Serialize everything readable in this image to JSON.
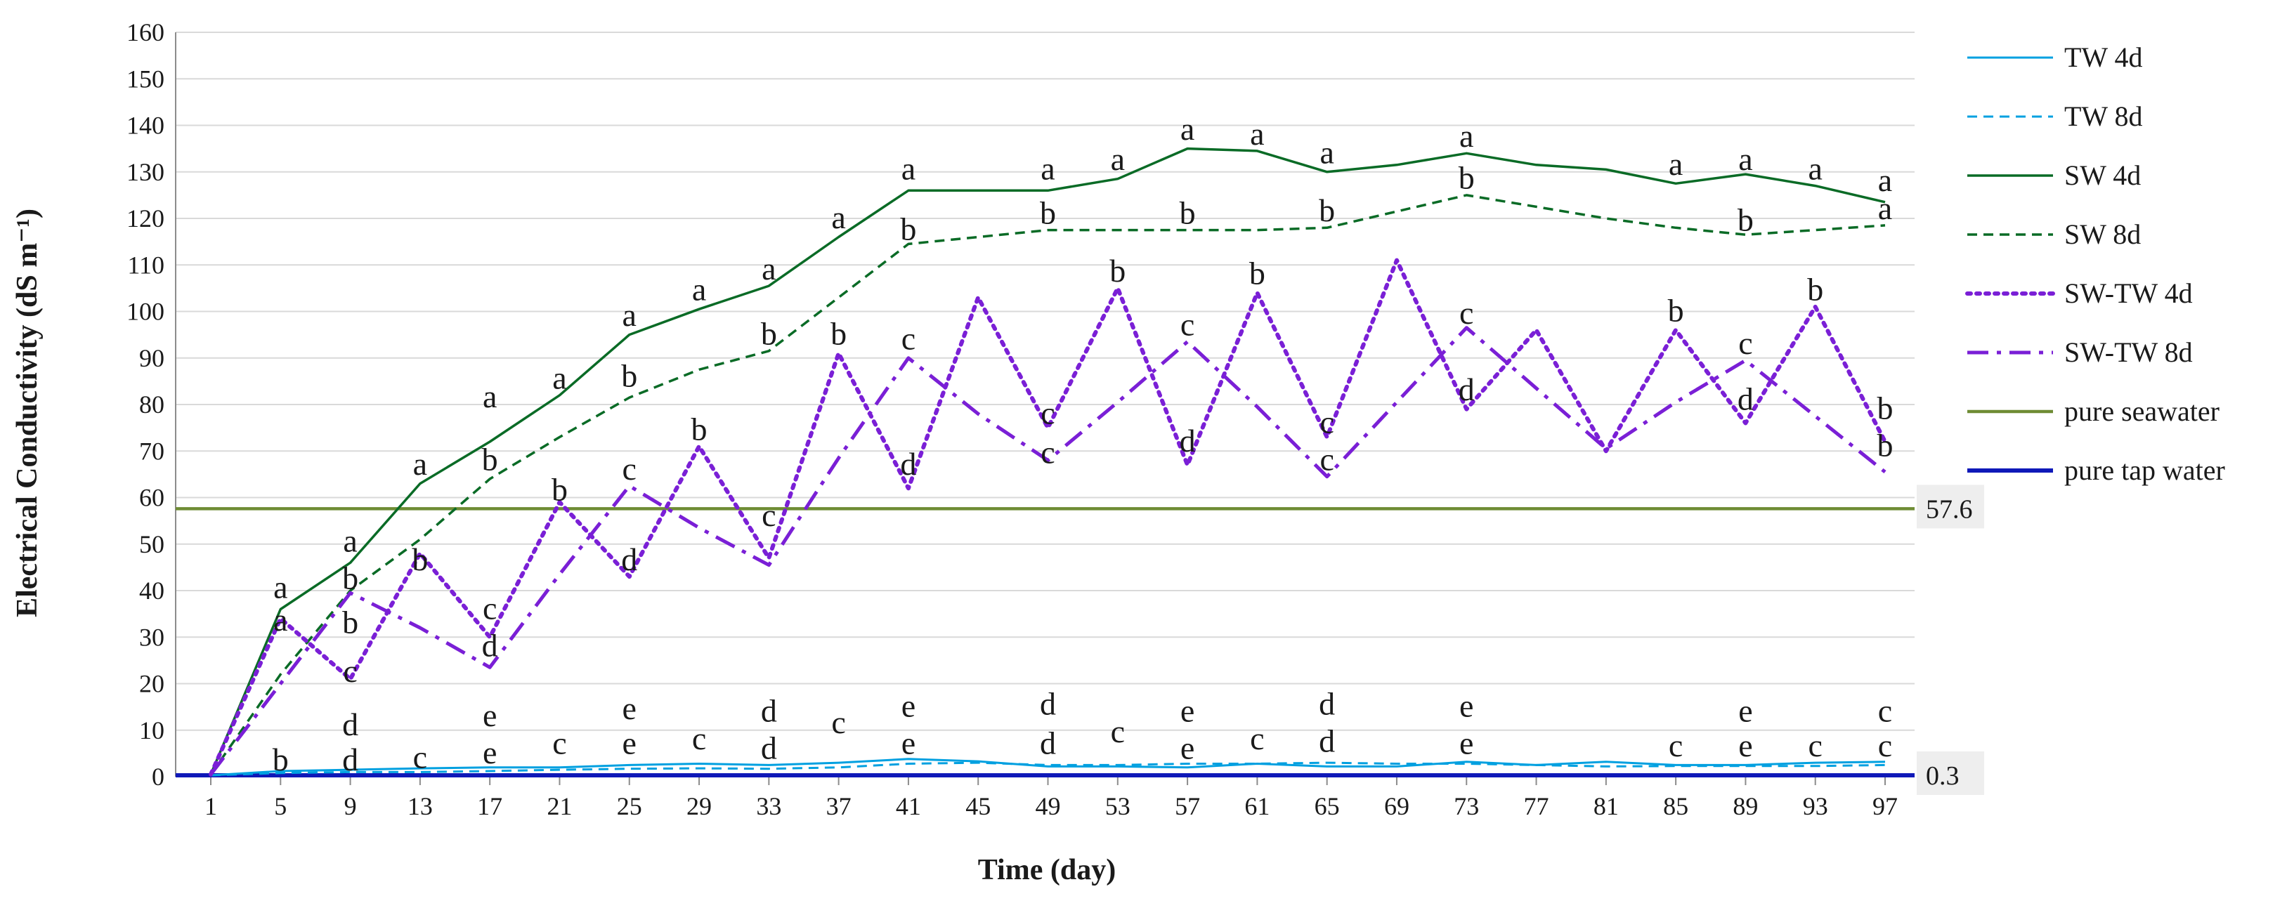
{
  "chart_data": {
    "type": "line",
    "xlabel": "Time (day)",
    "ylabel": "Electrical Conductivity (dS m⁻¹)",
    "ylim": [
      0,
      160
    ],
    "yticks": [
      0,
      10,
      20,
      30,
      40,
      50,
      60,
      70,
      80,
      90,
      100,
      110,
      120,
      130,
      140,
      150,
      160
    ],
    "x": [
      1,
      5,
      9,
      13,
      17,
      21,
      25,
      29,
      33,
      37,
      41,
      45,
      49,
      53,
      57,
      61,
      65,
      69,
      73,
      77,
      81,
      85,
      89,
      93,
      97
    ],
    "xtick_labels": [
      "1",
      "5",
      "9",
      "13",
      "17",
      "21",
      "25",
      "29",
      "33",
      "37",
      "41",
      "45",
      "49",
      "53",
      "57",
      "61",
      "65",
      "69",
      "73",
      "77",
      "81",
      "85",
      "89",
      "93",
      "97"
    ],
    "grid": "horizontal",
    "legend_position": "right",
    "series": [
      {
        "name": "TW 4d",
        "color": "#00a0e0",
        "dash": "solid",
        "values": [
          0.3,
          1.2,
          1.5,
          1.8,
          2.0,
          2.0,
          2.5,
          2.8,
          2.5,
          3.0,
          3.8,
          3.3,
          2.2,
          2.2,
          2.0,
          2.8,
          2.2,
          2.2,
          3.2,
          2.5,
          3.2,
          2.5,
          2.5,
          3.0,
          3.2
        ]
      },
      {
        "name": "TW 8d",
        "color": "#00a0e0",
        "dash": "dashed",
        "values": [
          0.3,
          0.8,
          1.0,
          1.0,
          1.2,
          1.5,
          1.7,
          1.8,
          1.7,
          2.0,
          2.8,
          3.0,
          2.5,
          2.5,
          2.8,
          2.8,
          3.0,
          2.8,
          2.8,
          2.5,
          2.2,
          2.3,
          2.3,
          2.3,
          2.5
        ]
      },
      {
        "name": "SW 4d",
        "color": "#0a6b26",
        "dash": "solid",
        "values": [
          0.5,
          36,
          46,
          63,
          72,
          82,
          95,
          100.5,
          105.5,
          116,
          126,
          126,
          126,
          128.5,
          135,
          134.5,
          130,
          131.5,
          134,
          131.5,
          130.5,
          127.5,
          129.5,
          127,
          123.5
        ]
      },
      {
        "name": "SW 8d",
        "color": "#0a6b26",
        "dash": "dashed",
        "values": [
          0.5,
          22,
          40,
          51,
          64,
          73,
          81.5,
          87.5,
          91.5,
          103,
          114.5,
          116,
          117.5,
          117.5,
          117.5,
          117.5,
          118,
          121.5,
          125,
          122.5,
          120,
          118,
          116.5,
          117.5,
          118.5
        ]
      },
      {
        "name": "SW-TW 4d",
        "color": "#7a1fd6",
        "dash": "dotted",
        "values": [
          0.5,
          34,
          21,
          48,
          30,
          59,
          43,
          71,
          47,
          91,
          62,
          103,
          75,
          105,
          67,
          104,
          73,
          111,
          79,
          96,
          70,
          96,
          76,
          101,
          72
        ]
      },
      {
        "name": "SW-TW 8d",
        "color": "#7a1fd6",
        "dash": "dashdot",
        "values": [
          0.5,
          20,
          39.5,
          32,
          23.5,
          43.5,
          62.5,
          53.5,
          45.5,
          68.5,
          90,
          78,
          68,
          80.5,
          93.5,
          79.5,
          64.5,
          80.5,
          96.5,
          83.5,
          70.5,
          80.5,
          89.5,
          77.5,
          65.5
        ]
      },
      {
        "name": "pure seawater",
        "color": "#6e8c34",
        "dash": "solid",
        "constant": 57.6,
        "values": [
          57.6,
          57.6,
          57.6,
          57.6,
          57.6,
          57.6,
          57.6,
          57.6,
          57.6,
          57.6,
          57.6,
          57.6,
          57.6,
          57.6,
          57.6,
          57.6,
          57.6,
          57.6,
          57.6,
          57.6,
          57.6,
          57.6,
          57.6,
          57.6,
          57.6
        ]
      },
      {
        "name": "pure tap water",
        "color": "#0f19b8",
        "dash": "solid",
        "constant": 0.3,
        "values": [
          0.3,
          0.3,
          0.3,
          0.3,
          0.3,
          0.3,
          0.3,
          0.3,
          0.3,
          0.3,
          0.3,
          0.3,
          0.3,
          0.3,
          0.3,
          0.3,
          0.3,
          0.3,
          0.3,
          0.3,
          0.3,
          0.3,
          0.3,
          0.3,
          0.3
        ]
      }
    ],
    "reference_labels": [
      {
        "text": "57.6",
        "value": 57.6
      },
      {
        "text": "0.3",
        "value": 0.3
      }
    ],
    "annotations": [
      {
        "x": 5,
        "y": 40.5,
        "text": "a"
      },
      {
        "x": 5,
        "y": 33.5,
        "text": "a"
      },
      {
        "x": 5,
        "y": 3.5,
        "text": "b"
      },
      {
        "x": 9,
        "y": 50.5,
        "text": "a"
      },
      {
        "x": 9,
        "y": 42.5,
        "text": "b"
      },
      {
        "x": 9,
        "y": 33,
        "text": "b"
      },
      {
        "x": 9,
        "y": 22.5,
        "text": "c"
      },
      {
        "x": 9,
        "y": 11,
        "text": "d"
      },
      {
        "x": 9,
        "y": 3.5,
        "text": "d"
      },
      {
        "x": 13,
        "y": 67,
        "text": "a"
      },
      {
        "x": 13,
        "y": 46.5,
        "text": "b"
      },
      {
        "x": 13,
        "y": 4,
        "text": "c"
      },
      {
        "x": 17,
        "y": 81.5,
        "text": "a"
      },
      {
        "x": 17,
        "y": 68,
        "text": "b"
      },
      {
        "x": 17,
        "y": 36,
        "text": "c"
      },
      {
        "x": 17,
        "y": 28,
        "text": "d"
      },
      {
        "x": 17,
        "y": 13,
        "text": "e"
      },
      {
        "x": 17,
        "y": 5,
        "text": "e"
      },
      {
        "x": 21,
        "y": 85.5,
        "text": "a"
      },
      {
        "x": 21,
        "y": 61.5,
        "text": "b"
      },
      {
        "x": 21,
        "y": 7,
        "text": "c"
      },
      {
        "x": 25,
        "y": 99,
        "text": "a"
      },
      {
        "x": 25,
        "y": 86,
        "text": "b"
      },
      {
        "x": 25,
        "y": 66,
        "text": "c"
      },
      {
        "x": 25,
        "y": 46.5,
        "text": "d"
      },
      {
        "x": 25,
        "y": 14.5,
        "text": "e"
      },
      {
        "x": 25,
        "y": 7,
        "text": "e"
      },
      {
        "x": 29,
        "y": 104.5,
        "text": "a"
      },
      {
        "x": 29,
        "y": 74.5,
        "text": "b"
      },
      {
        "x": 29,
        "y": 8,
        "text": "c"
      },
      {
        "x": 33,
        "y": 109,
        "text": "a"
      },
      {
        "x": 33,
        "y": 95,
        "text": "b"
      },
      {
        "x": 33,
        "y": 56,
        "text": "c"
      },
      {
        "x": 33,
        "y": 14,
        "text": "d"
      },
      {
        "x": 33,
        "y": 6,
        "text": "d"
      },
      {
        "x": 37,
        "y": 120,
        "text": "a"
      },
      {
        "x": 37,
        "y": 95,
        "text": "b"
      },
      {
        "x": 37,
        "y": 11.5,
        "text": "c"
      },
      {
        "x": 41,
        "y": 130.5,
        "text": "a"
      },
      {
        "x": 41,
        "y": 117.5,
        "text": "b"
      },
      {
        "x": 41,
        "y": 94,
        "text": "c"
      },
      {
        "x": 41,
        "y": 67,
        "text": "d"
      },
      {
        "x": 41,
        "y": 15,
        "text": "e"
      },
      {
        "x": 41,
        "y": 7,
        "text": "e"
      },
      {
        "x": 49,
        "y": 130.5,
        "text": "a"
      },
      {
        "x": 49,
        "y": 121,
        "text": "b"
      },
      {
        "x": 49,
        "y": 78,
        "text": "c"
      },
      {
        "x": 49,
        "y": 69.5,
        "text": "c"
      },
      {
        "x": 49,
        "y": 15.5,
        "text": "d"
      },
      {
        "x": 49,
        "y": 7,
        "text": "d"
      },
      {
        "x": 53,
        "y": 132.5,
        "text": "a"
      },
      {
        "x": 53,
        "y": 108.5,
        "text": "b"
      },
      {
        "x": 53,
        "y": 9.5,
        "text": "c"
      },
      {
        "x": 57,
        "y": 139,
        "text": "a"
      },
      {
        "x": 57,
        "y": 121,
        "text": "b"
      },
      {
        "x": 57,
        "y": 97,
        "text": "c"
      },
      {
        "x": 57,
        "y": 72,
        "text": "d"
      },
      {
        "x": 57,
        "y": 14,
        "text": "e"
      },
      {
        "x": 57,
        "y": 6,
        "text": "e"
      },
      {
        "x": 61,
        "y": 138,
        "text": "a"
      },
      {
        "x": 61,
        "y": 108,
        "text": "b"
      },
      {
        "x": 61,
        "y": 8,
        "text": "c"
      },
      {
        "x": 65,
        "y": 134,
        "text": "a"
      },
      {
        "x": 65,
        "y": 121.5,
        "text": "b"
      },
      {
        "x": 65,
        "y": 76,
        "text": "c"
      },
      {
        "x": 65,
        "y": 68,
        "text": "c"
      },
      {
        "x": 65,
        "y": 15.5,
        "text": "d"
      },
      {
        "x": 65,
        "y": 7.5,
        "text": "d"
      },
      {
        "x": 73,
        "y": 137.5,
        "text": "a"
      },
      {
        "x": 73,
        "y": 128.5,
        "text": "b"
      },
      {
        "x": 73,
        "y": 99.5,
        "text": "c"
      },
      {
        "x": 73,
        "y": 83,
        "text": "d"
      },
      {
        "x": 73,
        "y": 15,
        "text": "e"
      },
      {
        "x": 73,
        "y": 7,
        "text": "e"
      },
      {
        "x": 85,
        "y": 131.5,
        "text": "a"
      },
      {
        "x": 85,
        "y": 100,
        "text": "b"
      },
      {
        "x": 85,
        "y": 6.5,
        "text": "c"
      },
      {
        "x": 89,
        "y": 132.5,
        "text": "a"
      },
      {
        "x": 89,
        "y": 119.5,
        "text": "b"
      },
      {
        "x": 89,
        "y": 93,
        "text": "c"
      },
      {
        "x": 89,
        "y": 81,
        "text": "d"
      },
      {
        "x": 89,
        "y": 14,
        "text": "e"
      },
      {
        "x": 89,
        "y": 6.5,
        "text": "e"
      },
      {
        "x": 93,
        "y": 130.5,
        "text": "a"
      },
      {
        "x": 93,
        "y": 104.5,
        "text": "b"
      },
      {
        "x": 93,
        "y": 6.5,
        "text": "c"
      },
      {
        "x": 97,
        "y": 128,
        "text": "a"
      },
      {
        "x": 97,
        "y": 122,
        "text": "a"
      },
      {
        "x": 97,
        "y": 79,
        "text": "b"
      },
      {
        "x": 97,
        "y": 71,
        "text": "b"
      },
      {
        "x": 97,
        "y": 14,
        "text": "c"
      },
      {
        "x": 97,
        "y": 6.5,
        "text": "c"
      }
    ]
  }
}
